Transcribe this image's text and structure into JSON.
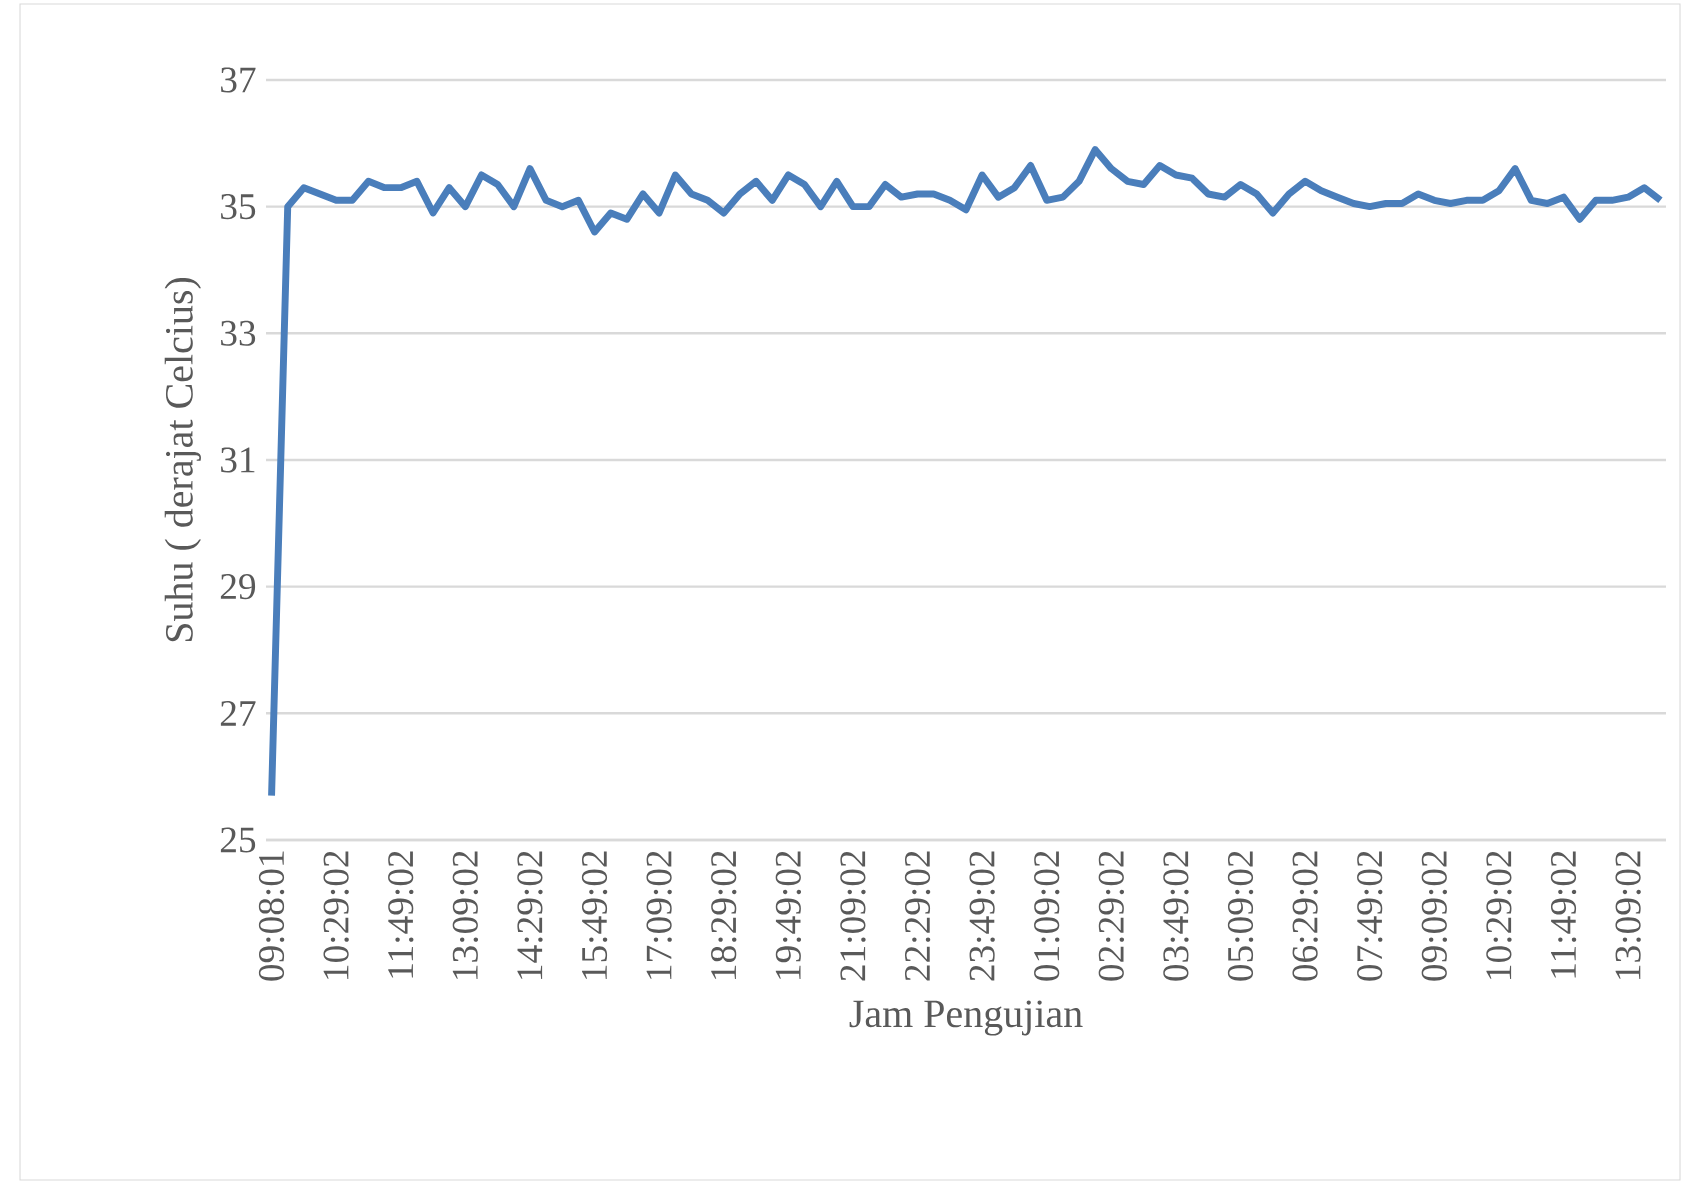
{
  "chart_data": {
    "type": "line",
    "xlabel": "Jam Pengujian",
    "ylabel": "Suhu ( derajat Celcius)",
    "categories": [
      "09:08:01",
      null,
      null,
      null,
      "10:29:02",
      null,
      null,
      null,
      "11:49:02",
      null,
      null,
      null,
      "13:09:02",
      null,
      null,
      null,
      "14:29:02",
      null,
      null,
      null,
      "15:49:02",
      null,
      null,
      null,
      "17:09:02",
      null,
      null,
      null,
      "18:29:02",
      null,
      null,
      null,
      "19:49:02",
      null,
      null,
      null,
      "21:09:02",
      null,
      null,
      null,
      "22:29:02",
      null,
      null,
      null,
      "23:49:02",
      null,
      null,
      null,
      "01:09:02",
      null,
      null,
      null,
      "02:29:02",
      null,
      null,
      null,
      "03:49:02",
      null,
      null,
      null,
      "05:09:02",
      null,
      null,
      null,
      "06:29:02",
      null,
      null,
      null,
      "07:49:02",
      null,
      null,
      null,
      "09:09:02",
      null,
      null,
      null,
      "10:29:02",
      null,
      null,
      null,
      "11:49:02",
      null,
      null,
      null,
      "13:09:02",
      null,
      null
    ],
    "values": [
      25.7,
      35.0,
      35.3,
      35.2,
      35.1,
      35.1,
      35.4,
      35.3,
      35.3,
      35.4,
      34.9,
      35.3,
      35.0,
      35.5,
      35.35,
      35.0,
      35.6,
      35.1,
      35.0,
      35.1,
      34.6,
      34.9,
      34.8,
      35.2,
      34.9,
      35.5,
      35.2,
      35.1,
      34.9,
      35.2,
      35.4,
      35.1,
      35.5,
      35.35,
      35.0,
      35.4,
      35.0,
      35.0,
      35.35,
      35.15,
      35.2,
      35.2,
      35.1,
      34.95,
      35.5,
      35.15,
      35.3,
      35.65,
      35.1,
      35.15,
      35.4,
      35.9,
      35.6,
      35.4,
      35.35,
      35.65,
      35.5,
      35.45,
      35.2,
      35.15,
      35.35,
      35.2,
      34.9,
      35.2,
      35.4,
      35.25,
      35.15,
      35.05,
      35.0,
      35.05,
      35.05,
      35.2,
      35.1,
      35.05,
      35.1,
      35.1,
      35.25,
      35.6,
      35.1,
      35.05,
      35.15,
      34.8,
      35.1,
      35.1,
      35.15,
      35.3,
      35.1
    ],
    "color": "#4a7ebb",
    "ylim": [
      25,
      37
    ],
    "yticks": [
      25,
      27,
      29,
      31,
      33,
      35,
      37
    ],
    "grid": "y"
  }
}
